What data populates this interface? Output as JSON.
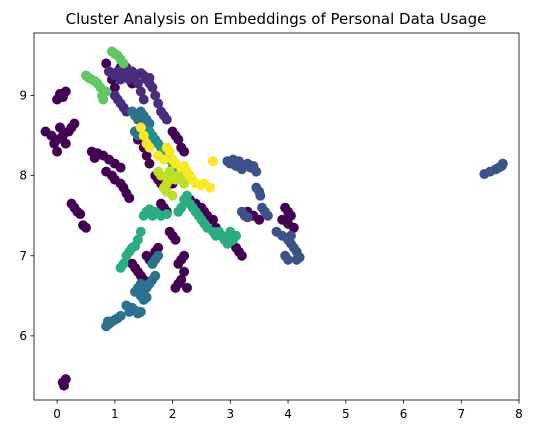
{
  "chart_data": {
    "type": "scatter",
    "title": "Cluster Analysis on Embeddings of Personal Data Usage",
    "xlabel": "",
    "ylabel": "",
    "xlim": [
      -0.4,
      8.0
    ],
    "ylim": [
      5.2,
      9.78
    ],
    "x_ticks": [
      "0",
      "1",
      "2",
      "3",
      "4",
      "5",
      "6",
      "7",
      "8"
    ],
    "y_ticks": [
      "6",
      "7",
      "8",
      "9"
    ],
    "grid": false,
    "legend": "none",
    "colormap": "viridis",
    "series": [
      {
        "color": "#440154",
        "points": [
          [
            0.1,
            5.42
          ],
          [
            0.15,
            5.46
          ],
          [
            0.12,
            5.38
          ],
          [
            0.05,
            9.02
          ],
          [
            0.1,
            8.98
          ],
          [
            0.15,
            9.05
          ],
          [
            0.0,
            8.95
          ],
          [
            -0.2,
            8.55
          ],
          [
            -0.1,
            8.5
          ],
          [
            0.0,
            8.45
          ],
          [
            0.1,
            8.5
          ],
          [
            0.2,
            8.55
          ],
          [
            0.05,
            8.6
          ],
          [
            -0.05,
            8.4
          ],
          [
            0.15,
            8.4
          ],
          [
            0.25,
            8.6
          ],
          [
            0.3,
            8.65
          ],
          [
            0.0,
            8.3
          ],
          [
            0.25,
            7.65
          ],
          [
            0.3,
            7.6
          ],
          [
            0.35,
            7.55
          ],
          [
            0.4,
            7.52
          ],
          [
            0.45,
            7.38
          ],
          [
            0.5,
            7.35
          ],
          [
            0.6,
            8.3
          ],
          [
            0.7,
            8.28
          ],
          [
            0.8,
            8.25
          ],
          [
            0.65,
            8.22
          ],
          [
            0.85,
            8.05
          ],
          [
            0.95,
            8.0
          ],
          [
            1.0,
            7.95
          ],
          [
            1.1,
            7.9
          ],
          [
            0.9,
            8.2
          ],
          [
            1.0,
            8.15
          ],
          [
            1.1,
            8.1
          ],
          [
            1.15,
            7.85
          ],
          [
            1.2,
            7.78
          ],
          [
            1.25,
            7.72
          ],
          [
            0.85,
            9.4
          ],
          [
            0.9,
            9.3
          ],
          [
            0.95,
            9.2
          ],
          [
            1.0,
            9.1
          ],
          [
            1.1,
            9.35
          ],
          [
            1.2,
            9.25
          ],
          [
            1.3,
            9.15
          ],
          [
            1.35,
            8.55
          ],
          [
            1.4,
            8.45
          ],
          [
            1.5,
            8.35
          ],
          [
            1.55,
            8.25
          ],
          [
            1.6,
            8.15
          ],
          [
            1.7,
            8.0
          ],
          [
            1.75,
            7.95
          ],
          [
            1.8,
            7.9
          ],
          [
            1.85,
            7.85
          ],
          [
            1.9,
            7.8
          ],
          [
            2.0,
            7.9
          ],
          [
            2.05,
            8.0
          ],
          [
            2.1,
            8.05
          ],
          [
            1.8,
            7.65
          ],
          [
            1.85,
            7.6
          ],
          [
            1.9,
            7.55
          ],
          [
            2.0,
            8.55
          ],
          [
            2.05,
            8.5
          ],
          [
            2.1,
            8.45
          ],
          [
            2.15,
            8.35
          ],
          [
            2.2,
            8.3
          ],
          [
            1.55,
            7.0
          ],
          [
            1.6,
            6.95
          ],
          [
            1.65,
            6.9
          ],
          [
            1.7,
            7.05
          ],
          [
            1.75,
            7.1
          ],
          [
            1.3,
            6.9
          ],
          [
            1.35,
            6.85
          ],
          [
            1.4,
            6.8
          ],
          [
            1.45,
            6.75
          ],
          [
            1.5,
            6.7
          ],
          [
            2.05,
            6.6
          ],
          [
            2.1,
            6.65
          ],
          [
            2.15,
            6.7
          ],
          [
            2.2,
            6.8
          ],
          [
            2.25,
            6.6
          ],
          [
            2.1,
            6.9
          ],
          [
            2.15,
            6.95
          ],
          [
            2.2,
            7.0
          ],
          [
            2.3,
            7.7
          ],
          [
            2.4,
            7.65
          ],
          [
            2.5,
            7.6
          ],
          [
            2.55,
            7.55
          ],
          [
            2.6,
            7.5
          ],
          [
            2.7,
            7.45
          ],
          [
            2.75,
            7.35
          ],
          [
            2.8,
            7.3
          ],
          [
            2.85,
            7.25
          ],
          [
            2.9,
            7.2
          ],
          [
            3.0,
            7.2
          ],
          [
            3.1,
            7.1
          ],
          [
            3.15,
            7.05
          ],
          [
            3.2,
            7.0
          ],
          [
            3.3,
            7.55
          ],
          [
            3.4,
            7.5
          ],
          [
            3.5,
            7.45
          ],
          [
            3.95,
            7.6
          ],
          [
            4.0,
            7.55
          ],
          [
            4.05,
            7.5
          ],
          [
            3.9,
            7.45
          ],
          [
            4.0,
            7.4
          ],
          [
            4.1,
            7.35
          ],
          [
            1.95,
            7.3
          ],
          [
            2.0,
            7.25
          ],
          [
            2.05,
            7.2
          ]
        ]
      },
      {
        "color": "#472d7b",
        "points": [
          [
            0.9,
            9.3
          ],
          [
            1.0,
            9.25
          ],
          [
            1.05,
            9.3
          ],
          [
            1.1,
            9.2
          ],
          [
            1.15,
            9.3
          ],
          [
            1.2,
            9.35
          ],
          [
            1.3,
            9.3
          ],
          [
            1.25,
            9.2
          ],
          [
            1.0,
            9.0
          ],
          [
            1.05,
            8.95
          ],
          [
            1.1,
            8.9
          ],
          [
            1.15,
            8.85
          ],
          [
            1.2,
            8.8
          ],
          [
            1.35,
            9.25
          ],
          [
            1.4,
            9.15
          ],
          [
            1.45,
            9.05
          ],
          [
            1.5,
            8.95
          ],
          [
            1.55,
            9.2
          ],
          [
            1.6,
            9.15
          ],
          [
            1.65,
            9.1
          ],
          [
            1.7,
            9.0
          ],
          [
            1.75,
            8.9
          ],
          [
            1.8,
            8.8
          ],
          [
            1.85,
            8.75
          ],
          [
            1.9,
            8.7
          ],
          [
            1.45,
            9.28
          ],
          [
            1.5,
            9.25
          ],
          [
            1.6,
            9.22
          ]
        ]
      },
      {
        "color": "#3b528b",
        "points": [
          [
            2.95,
            8.18
          ],
          [
            3.0,
            8.15
          ],
          [
            3.05,
            8.2
          ],
          [
            3.1,
            8.12
          ],
          [
            3.15,
            8.18
          ],
          [
            3.2,
            8.08
          ],
          [
            3.3,
            8.15
          ],
          [
            3.35,
            8.1
          ],
          [
            3.4,
            8.12
          ],
          [
            3.45,
            8.05
          ],
          [
            3.45,
            7.85
          ],
          [
            3.5,
            7.8
          ],
          [
            3.52,
            7.75
          ],
          [
            3.2,
            7.55
          ],
          [
            3.25,
            7.5
          ],
          [
            3.3,
            7.48
          ],
          [
            3.55,
            7.6
          ],
          [
            3.6,
            7.55
          ],
          [
            3.65,
            7.5
          ],
          [
            3.8,
            7.3
          ],
          [
            3.9,
            7.25
          ],
          [
            4.0,
            7.2
          ],
          [
            4.05,
            7.15
          ],
          [
            4.1,
            7.1
          ],
          [
            4.15,
            7.05
          ],
          [
            4.2,
            6.98
          ],
          [
            4.15,
            6.95
          ],
          [
            4.05,
            7.25
          ],
          [
            3.95,
            7.0
          ],
          [
            4.0,
            6.95
          ],
          [
            7.4,
            8.02
          ],
          [
            7.5,
            8.05
          ],
          [
            7.6,
            8.08
          ],
          [
            7.65,
            8.1
          ],
          [
            7.7,
            8.12
          ],
          [
            7.72,
            8.15
          ]
        ]
      },
      {
        "color": "#2c728e",
        "points": [
          [
            0.85,
            6.12
          ],
          [
            0.9,
            6.15
          ],
          [
            0.95,
            6.18
          ],
          [
            1.0,
            6.2
          ],
          [
            1.05,
            6.22
          ],
          [
            1.1,
            6.25
          ],
          [
            0.88,
            6.18
          ],
          [
            1.25,
            6.3
          ],
          [
            1.3,
            6.35
          ],
          [
            1.35,
            6.32
          ],
          [
            1.4,
            6.28
          ],
          [
            1.45,
            6.3
          ],
          [
            1.2,
            6.38
          ],
          [
            1.45,
            6.5
          ],
          [
            1.5,
            6.55
          ],
          [
            1.55,
            6.6
          ],
          [
            1.6,
            6.65
          ],
          [
            1.65,
            6.7
          ],
          [
            1.7,
            6.75
          ],
          [
            1.5,
            6.45
          ],
          [
            1.55,
            6.48
          ],
          [
            1.35,
            6.55
          ],
          [
            1.4,
            6.6
          ],
          [
            1.45,
            6.65
          ],
          [
            1.65,
            6.9
          ],
          [
            1.7,
            6.95
          ],
          [
            1.75,
            7.0
          ],
          [
            1.3,
            8.8
          ],
          [
            1.35,
            8.75
          ],
          [
            1.4,
            8.7
          ],
          [
            1.45,
            8.8
          ],
          [
            1.5,
            8.75
          ],
          [
            1.55,
            8.7
          ],
          [
            1.6,
            8.65
          ],
          [
            1.45,
            8.6
          ],
          [
            1.35,
            8.55
          ],
          [
            1.4,
            8.5
          ]
        ]
      },
      {
        "color": "#21918c",
        "points": [
          [
            1.6,
            8.55
          ],
          [
            1.65,
            8.5
          ],
          [
            1.7,
            8.45
          ],
          [
            1.75,
            8.4
          ],
          [
            1.8,
            8.35
          ]
        ]
      },
      {
        "color": "#28ae80",
        "points": [
          [
            1.1,
            6.85
          ],
          [
            1.15,
            6.9
          ],
          [
            1.2,
            7.0
          ],
          [
            1.25,
            7.05
          ],
          [
            1.3,
            7.1
          ],
          [
            1.35,
            7.12
          ],
          [
            1.4,
            7.2
          ],
          [
            1.45,
            7.3
          ],
          [
            1.5,
            7.5
          ],
          [
            1.55,
            7.55
          ],
          [
            1.6,
            7.58
          ],
          [
            1.65,
            7.5
          ],
          [
            1.7,
            7.55
          ],
          [
            1.75,
            7.52
          ],
          [
            1.8,
            7.5
          ],
          [
            1.9,
            7.52
          ],
          [
            2.1,
            7.55
          ],
          [
            2.15,
            7.6
          ],
          [
            2.2,
            7.7
          ],
          [
            2.25,
            7.75
          ],
          [
            2.3,
            7.65
          ],
          [
            2.35,
            7.6
          ],
          [
            2.4,
            7.55
          ],
          [
            2.45,
            7.5
          ],
          [
            2.5,
            7.45
          ],
          [
            2.55,
            7.4
          ],
          [
            2.6,
            7.35
          ],
          [
            2.7,
            7.3
          ],
          [
            2.75,
            7.25
          ],
          [
            2.8,
            7.3
          ],
          [
            2.85,
            7.25
          ],
          [
            2.9,
            7.2
          ],
          [
            2.95,
            7.15
          ],
          [
            3.0,
            7.18
          ],
          [
            3.05,
            7.2
          ],
          [
            3.1,
            7.25
          ],
          [
            3.0,
            7.3
          ],
          [
            1.85,
            8.3
          ],
          [
            1.9,
            8.25
          ],
          [
            1.95,
            8.2
          ],
          [
            2.0,
            8.1
          ],
          [
            2.05,
            8.05
          ]
        ]
      },
      {
        "color": "#5ec962",
        "points": [
          [
            0.5,
            9.25
          ],
          [
            0.55,
            9.22
          ],
          [
            0.6,
            9.2
          ],
          [
            0.65,
            9.18
          ],
          [
            0.7,
            9.15
          ],
          [
            0.75,
            9.1
          ],
          [
            0.78,
            9.0
          ],
          [
            0.8,
            8.95
          ],
          [
            0.85,
            9.05
          ],
          [
            0.95,
            9.55
          ],
          [
            1.0,
            9.52
          ],
          [
            1.05,
            9.5
          ],
          [
            1.1,
            9.45
          ],
          [
            1.15,
            9.4
          ]
        ]
      },
      {
        "color": "#bddf26",
        "points": [
          [
            1.85,
            7.85
          ],
          [
            1.9,
            7.9
          ],
          [
            1.95,
            7.95
          ],
          [
            2.0,
            8.0
          ],
          [
            2.05,
            7.95
          ],
          [
            2.1,
            8.0
          ],
          [
            2.15,
            7.95
          ],
          [
            1.75,
            8.05
          ],
          [
            1.8,
            8.0
          ],
          [
            1.95,
            8.05
          ],
          [
            2.2,
            7.9
          ],
          [
            1.9,
            7.8
          ],
          [
            2.0,
            7.75
          ]
        ]
      },
      {
        "color": "#fde725",
        "points": [
          [
            1.45,
            8.6
          ],
          [
            1.5,
            8.5
          ],
          [
            1.55,
            8.4
          ],
          [
            1.6,
            8.35
          ],
          [
            1.75,
            8.25
          ],
          [
            1.85,
            8.2
          ],
          [
            1.9,
            8.35
          ],
          [
            1.95,
            8.3
          ],
          [
            2.0,
            8.2
          ],
          [
            2.05,
            8.15
          ],
          [
            2.15,
            8.1
          ],
          [
            2.25,
            8.05
          ],
          [
            2.3,
            8.0
          ],
          [
            2.35,
            7.95
          ],
          [
            2.4,
            7.9
          ],
          [
            2.5,
            7.88
          ],
          [
            2.55,
            7.9
          ],
          [
            2.65,
            7.85
          ],
          [
            2.7,
            8.18
          ],
          [
            2.2,
            8.12
          ]
        ]
      }
    ]
  }
}
